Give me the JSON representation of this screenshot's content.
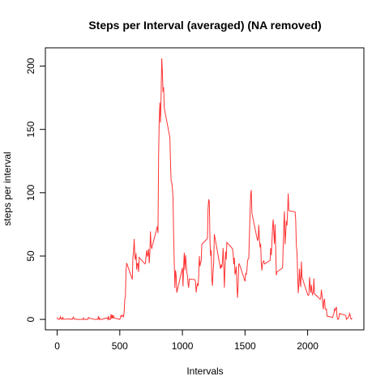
{
  "chart_data": {
    "type": "line",
    "title": "Steps per Interval (averaged) (NA removed)",
    "x_label": "Intervals",
    "y_label": "steps per interval",
    "xlim": [
      -94.2,
      2449.2
    ],
    "ylim": [
      -8.25,
      214.42
    ],
    "xticks": [
      0,
      500,
      1000,
      1500,
      2000
    ],
    "yticks": [
      0,
      50,
      100,
      150,
      200
    ],
    "series": [
      {
        "color": "#ff3333",
        "x": [
          0,
          5,
          10,
          15,
          20,
          25,
          30,
          35,
          40,
          45,
          50,
          55,
          100,
          105,
          110,
          115,
          120,
          125,
          130,
          135,
          140,
          145,
          150,
          155,
          200,
          205,
          210,
          215,
          220,
          225,
          230,
          235,
          240,
          245,
          250,
          255,
          300,
          305,
          310,
          315,
          320,
          325,
          330,
          335,
          340,
          345,
          350,
          355,
          400,
          405,
          410,
          415,
          420,
          425,
          430,
          435,
          440,
          445,
          450,
          455,
          500,
          505,
          510,
          515,
          520,
          525,
          530,
          535,
          540,
          545,
          550,
          555,
          600,
          605,
          610,
          615,
          620,
          625,
          630,
          635,
          640,
          645,
          650,
          655,
          700,
          705,
          710,
          715,
          720,
          725,
          730,
          735,
          740,
          745,
          750,
          755,
          800,
          805,
          810,
          815,
          820,
          825,
          830,
          835,
          840,
          845,
          850,
          855,
          900,
          905,
          910,
          915,
          920,
          925,
          930,
          935,
          940,
          945,
          950,
          955,
          1000,
          1005,
          1010,
          1015,
          1020,
          1025,
          1030,
          1035,
          1040,
          1045,
          1050,
          1055,
          1100,
          1105,
          1110,
          1115,
          1120,
          1125,
          1130,
          1135,
          1140,
          1145,
          1150,
          1155,
          1200,
          1205,
          1210,
          1215,
          1220,
          1225,
          1230,
          1235,
          1240,
          1245,
          1250,
          1255,
          1300,
          1305,
          1310,
          1315,
          1320,
          1325,
          1330,
          1335,
          1340,
          1345,
          1350,
          1355,
          1400,
          1405,
          1410,
          1415,
          1420,
          1425,
          1430,
          1435,
          1440,
          1445,
          1450,
          1455,
          1500,
          1505,
          1510,
          1515,
          1520,
          1525,
          1530,
          1535,
          1540,
          1545,
          1550,
          1555,
          1600,
          1605,
          1610,
          1615,
          1620,
          1625,
          1630,
          1635,
          1640,
          1645,
          1650,
          1655,
          1700,
          1705,
          1710,
          1715,
          1720,
          1725,
          1730,
          1735,
          1740,
          1745,
          1750,
          1755,
          1800,
          1805,
          1810,
          1815,
          1820,
          1825,
          1830,
          1835,
          1840,
          1845,
          1850,
          1855,
          1900,
          1905,
          1910,
          1915,
          1920,
          1925,
          1930,
          1935,
          1940,
          1945,
          1950,
          1955,
          2000,
          2005,
          2010,
          2015,
          2020,
          2025,
          2030,
          2035,
          2040,
          2045,
          2050,
          2055,
          2100,
          2105,
          2110,
          2115,
          2120,
          2125,
          2130,
          2135,
          2140,
          2145,
          2150,
          2155,
          2200,
          2205,
          2210,
          2215,
          2220,
          2225,
          2230,
          2235,
          2240,
          2245,
          2250,
          2255,
          2300,
          2305,
          2310,
          2315,
          2320,
          2325,
          2330,
          2335,
          2340,
          2345,
          2350,
          2355
        ],
        "values": [
          1.7,
          0.3,
          0.1,
          0.2,
          0.1,
          2.1,
          0.5,
          0.9,
          0,
          1.5,
          0.3,
          0.1,
          0.4,
          0,
          0.2,
          0.3,
          0,
          1.1,
          1.8,
          0.2,
          0.2,
          0.4,
          0.3,
          0,
          0,
          0,
          1.1,
          0,
          0,
          0.1,
          0,
          0.2,
          0,
          0,
          1.5,
          0.9,
          0,
          0,
          0,
          0,
          0.2,
          0,
          2.6,
          0,
          0.9,
          0.1,
          0,
          0,
          1.2,
          0,
          2.6,
          0,
          0.3,
          0,
          4.1,
          0.7,
          3.5,
          0.8,
          3.1,
          1.1,
          0,
          1.6,
          3,
          2.2,
          3.3,
          3,
          2.1,
          6.1,
          16,
          18.3,
          39.5,
          44.5,
          31.5,
          49.3,
          53.8,
          63.5,
          50,
          47.1,
          52.2,
          39.3,
          44,
          44.2,
          37.4,
          49,
          43.8,
          44.4,
          50.5,
          54.5,
          49.9,
          51,
          55.7,
          44.3,
          52.3,
          69.5,
          57.8,
          56.2,
          73.4,
          68.2,
          129.4,
          157.5,
          171.2,
          155.4,
          177.3,
          206.2,
          195.9,
          179.6,
          183.4,
          167,
          143.5,
          124,
          109.1,
          108.1,
          103.7,
          96,
          66.2,
          45.2,
          24.8,
          38.8,
          35,
          21.1,
          40.6,
          26.1,
          42.4,
          52.7,
          38.9,
          50.8,
          44.3,
          37.4,
          34.7,
          28.3,
          25.1,
          31.9,
          31.4,
          29.7,
          21.3,
          25.5,
          28.4,
          26.5,
          33.4,
          50,
          42,
          44.6,
          46,
          59.2,
          63.9,
          87.7,
          94.8,
          92.8,
          63.4,
          50.2,
          54.5,
          32.4,
          26.5,
          37.7,
          45.1,
          67.3,
          42.3,
          39.9,
          43.3,
          41,
          46.2,
          56.4,
          42.8,
          25.1,
          40,
          53.5,
          47.3,
          60.8,
          55.8,
          52,
          43.6,
          48.7,
          35.5,
          37.5,
          41.8,
          27.5,
          17.1,
          26.1,
          43.6,
          43.8,
          30,
          36.1,
          35.5,
          38.8,
          46,
          47.8,
          48.1,
          65.3,
          82.9,
          98.7,
          102.1,
          84,
          62.1,
          64.1,
          74.5,
          63.2,
          56.9,
          59.8,
          43.9,
          38.6,
          44.7,
          45.5,
          46.2,
          43.7,
          46.6,
          56.3,
          50.7,
          61.2,
          72.7,
          78.9,
          68.9,
          59.7,
          75.1,
          56.5,
          34.8,
          37.5,
          40.7,
          58,
          74.7,
          85.3,
          59.3,
          67.8,
          77.7,
          74.2,
          85.3,
          99.5,
          86.6,
          85.6,
          84.9,
          77.8,
          58,
          53.4,
          36.3,
          20.7,
          27.4,
          40,
          30.2,
          25.5,
          45.7,
          33.5,
          19.6,
          19,
          19.3,
          33.3,
          26.8,
          21.2,
          27.3,
          21.3,
          19.5,
          21.3,
          32.3,
          20.2,
          15.9,
          17.2,
          23.5,
          19.2,
          12.5,
          8,
          14.7,
          16.3,
          8.7,
          7.8,
          8.1,
          2.6,
          1.5,
          3.7,
          4.8,
          8.5,
          7.1,
          8.7,
          9.8,
          2.2,
          0.3,
          0.1,
          1.6,
          4.6,
          3.3,
          2.8,
          0,
          0.8,
          1,
          1.6,
          2.6,
          4.7,
          3.3,
          0.6,
          0.2,
          1.1
        ]
      }
    ]
  }
}
